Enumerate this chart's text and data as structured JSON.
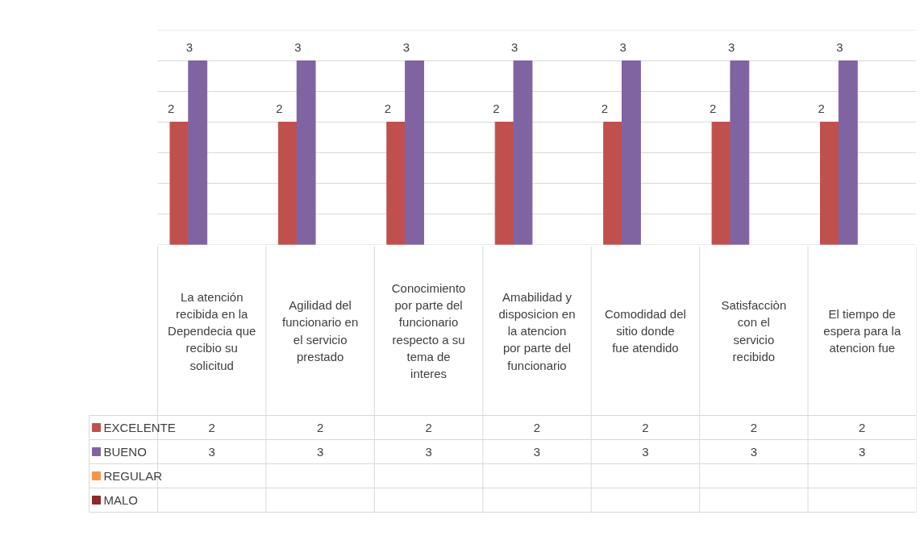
{
  "chart_data": {
    "type": "bar",
    "categories": [
      "La atención recibida en la Dependecia que recibio su solicitud",
      "Agilidad del funcionario en el servicio prestado",
      "Conocimiento por parte del funcionario respecto a su tema de interes",
      "Amabilidad y disposicion en la atencion por parte del funcionario",
      "Comodidad del sitio donde fue atendido",
      "Satisfacciòn con el servicio recibido",
      "El tiempo de espera para la atencion fue"
    ],
    "series": [
      {
        "name": "EXCELENTE",
        "color": "#c0504d",
        "values": [
          2,
          2,
          2,
          2,
          2,
          2,
          2
        ],
        "value_labels": [
          "2",
          "2",
          "2",
          "2",
          "2",
          "2",
          "2"
        ]
      },
      {
        "name": "BUENO",
        "color": "#8064a2",
        "values": [
          3,
          3,
          3,
          3,
          3,
          3,
          3
        ],
        "value_labels": [
          "3",
          "3",
          "3",
          "3",
          "3",
          "3",
          "3"
        ]
      },
      {
        "name": "REGULAR",
        "color": "#f79646",
        "values": [
          null,
          null,
          null,
          null,
          null,
          null,
          null
        ]
      },
      {
        "name": "MALO",
        "color": "#8b2a28",
        "values": [
          null,
          null,
          null,
          null,
          null,
          null,
          null
        ]
      }
    ],
    "ylim": [
      0,
      3.5
    ],
    "yticks": [
      {
        "value": 0,
        "label": null
      },
      {
        "value": 0.5,
        "label": null
      },
      {
        "value": 1,
        "label": null
      },
      {
        "value": 1.5,
        "label": null
      },
      {
        "value": 2,
        "label": null
      },
      {
        "value": 2.5,
        "label": null
      },
      {
        "value": 3,
        "label": null
      },
      {
        "value": 3.5,
        "label": null
      }
    ],
    "tick_labels": false,
    "grid": "y",
    "data_labels": true,
    "legend": "bottom"
  }
}
